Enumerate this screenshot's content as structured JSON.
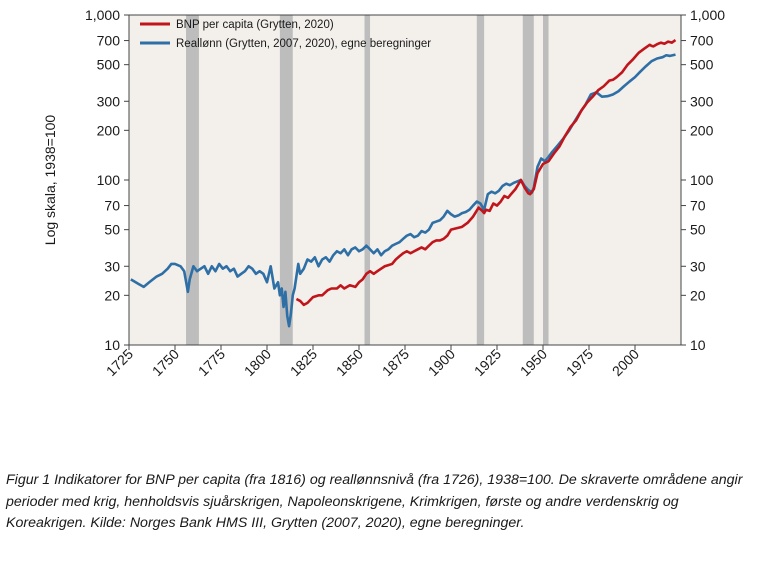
{
  "chart_data": {
    "type": "line",
    "yscale": "log",
    "ylabel": "Log skala, 1938=100",
    "ylim": [
      10,
      1000
    ],
    "xlim": [
      1725,
      2025
    ],
    "yticks": [
      {
        "value": 1000,
        "label": "1,000"
      },
      {
        "value": 700,
        "label": "700"
      },
      {
        "value": 500,
        "label": "500"
      },
      {
        "value": 300,
        "label": "300"
      },
      {
        "value": 200,
        "label": "200"
      },
      {
        "value": 100,
        "label": "100"
      },
      {
        "value": 70,
        "label": "70"
      },
      {
        "value": 50,
        "label": "50"
      },
      {
        "value": 30,
        "label": "30"
      },
      {
        "value": 20,
        "label": "20"
      },
      {
        "value": 10,
        "label": "10"
      }
    ],
    "xticks": [
      {
        "value": 1725,
        "label": "1725"
      },
      {
        "value": 1750,
        "label": "1750"
      },
      {
        "value": 1775,
        "label": "1775"
      },
      {
        "value": 1800,
        "label": "1800"
      },
      {
        "value": 1825,
        "label": "1825"
      },
      {
        "value": 1850,
        "label": "1850"
      },
      {
        "value": 1875,
        "label": "1875"
      },
      {
        "value": 1900,
        "label": "1900"
      },
      {
        "value": 1925,
        "label": "1925"
      },
      {
        "value": 1950,
        "label": "1950"
      },
      {
        "value": 1975,
        "label": "1975"
      },
      {
        "value": 2000,
        "label": "2000"
      }
    ],
    "shaded_periods": [
      {
        "name": "Sjuårskrigen",
        "start": 1756,
        "end": 1763
      },
      {
        "name": "Napoleonskrigene",
        "start": 1807,
        "end": 1814
      },
      {
        "name": "Krimkrigen",
        "start": 1853,
        "end": 1856
      },
      {
        "name": "Første verdenskrig",
        "start": 1914,
        "end": 1918
      },
      {
        "name": "Andre verdenskrig",
        "start": 1939,
        "end": 1945
      },
      {
        "name": "Koreakrigen",
        "start": 1950,
        "end": 1953
      }
    ],
    "series": [
      {
        "name": "BNP per capita (Grytten, 2020)",
        "color": "#c0151b",
        "points": [
          [
            1816,
            19
          ],
          [
            1818,
            18.5
          ],
          [
            1820,
            17.5
          ],
          [
            1822,
            18
          ],
          [
            1825,
            19.5
          ],
          [
            1828,
            20
          ],
          [
            1830,
            20
          ],
          [
            1833,
            21.5
          ],
          [
            1835,
            22
          ],
          [
            1838,
            22
          ],
          [
            1840,
            23
          ],
          [
            1842,
            22
          ],
          [
            1845,
            23
          ],
          [
            1848,
            22.5
          ],
          [
            1850,
            24
          ],
          [
            1852,
            25
          ],
          [
            1854,
            27
          ],
          [
            1856,
            28
          ],
          [
            1858,
            27
          ],
          [
            1860,
            28
          ],
          [
            1862,
            29
          ],
          [
            1864,
            30
          ],
          [
            1866,
            30.5
          ],
          [
            1868,
            31
          ],
          [
            1870,
            33
          ],
          [
            1872,
            34.5
          ],
          [
            1874,
            36
          ],
          [
            1876,
            37
          ],
          [
            1878,
            36
          ],
          [
            1880,
            37
          ],
          [
            1882,
            38
          ],
          [
            1884,
            39
          ],
          [
            1886,
            38
          ],
          [
            1888,
            40
          ],
          [
            1890,
            42
          ],
          [
            1892,
            43
          ],
          [
            1894,
            43
          ],
          [
            1896,
            44
          ],
          [
            1898,
            46
          ],
          [
            1900,
            50
          ],
          [
            1903,
            51
          ],
          [
            1906,
            52
          ],
          [
            1909,
            55
          ],
          [
            1912,
            60
          ],
          [
            1915,
            68
          ],
          [
            1917,
            65
          ],
          [
            1918,
            63
          ],
          [
            1919,
            66
          ],
          [
            1921,
            65
          ],
          [
            1923,
            72
          ],
          [
            1925,
            70
          ],
          [
            1927,
            74
          ],
          [
            1929,
            80
          ],
          [
            1931,
            78
          ],
          [
            1933,
            83
          ],
          [
            1935,
            88
          ],
          [
            1938,
            100
          ],
          [
            1940,
            90
          ],
          [
            1942,
            83
          ],
          [
            1943,
            82
          ],
          [
            1944,
            85
          ],
          [
            1945,
            88
          ],
          [
            1947,
            110
          ],
          [
            1950,
            125
          ],
          [
            1953,
            130
          ],
          [
            1956,
            145
          ],
          [
            1959,
            160
          ],
          [
            1962,
            185
          ],
          [
            1965,
            210
          ],
          [
            1968,
            230
          ],
          [
            1971,
            265
          ],
          [
            1974,
            295
          ],
          [
            1977,
            320
          ],
          [
            1980,
            350
          ],
          [
            1983,
            370
          ],
          [
            1986,
            400
          ],
          [
            1988,
            405
          ],
          [
            1990,
            420
          ],
          [
            1993,
            450
          ],
          [
            1996,
            500
          ],
          [
            1999,
            540
          ],
          [
            2002,
            590
          ],
          [
            2005,
            625
          ],
          [
            2008,
            660
          ],
          [
            2009,
            650
          ],
          [
            2010,
            645
          ],
          [
            2012,
            665
          ],
          [
            2014,
            680
          ],
          [
            2016,
            670
          ],
          [
            2018,
            690
          ],
          [
            2020,
            680
          ],
          [
            2022,
            705
          ]
        ]
      },
      {
        "name": "Reallønn (Grytten, 2007, 2020), egne beregninger",
        "color": "#2e6fa6",
        "points": [
          [
            1726,
            25
          ],
          [
            1730,
            23.5
          ],
          [
            1733,
            22.5
          ],
          [
            1736,
            24
          ],
          [
            1740,
            26
          ],
          [
            1743,
            27
          ],
          [
            1746,
            29
          ],
          [
            1748,
            31
          ],
          [
            1750,
            31
          ],
          [
            1753,
            30
          ],
          [
            1755,
            28
          ],
          [
            1757,
            21
          ],
          [
            1758,
            25
          ],
          [
            1760,
            30
          ],
          [
            1762,
            28
          ],
          [
            1764,
            29
          ],
          [
            1766,
            30
          ],
          [
            1768,
            27
          ],
          [
            1770,
            30
          ],
          [
            1772,
            28
          ],
          [
            1774,
            31
          ],
          [
            1776,
            29
          ],
          [
            1778,
            30
          ],
          [
            1780,
            28
          ],
          [
            1782,
            29
          ],
          [
            1784,
            26
          ],
          [
            1786,
            27
          ],
          [
            1788,
            28
          ],
          [
            1790,
            30
          ],
          [
            1792,
            29
          ],
          [
            1794,
            27
          ],
          [
            1796,
            28
          ],
          [
            1798,
            27
          ],
          [
            1800,
            24
          ],
          [
            1802,
            30
          ],
          [
            1804,
            22
          ],
          [
            1806,
            24
          ],
          [
            1807,
            20
          ],
          [
            1808,
            22
          ],
          [
            1809,
            17
          ],
          [
            1810,
            21
          ],
          [
            1811,
            15
          ],
          [
            1812,
            13
          ],
          [
            1813,
            15.5
          ],
          [
            1814,
            20
          ],
          [
            1815,
            22
          ],
          [
            1817,
            31
          ],
          [
            1818,
            27
          ],
          [
            1820,
            29
          ],
          [
            1822,
            33
          ],
          [
            1824,
            32
          ],
          [
            1826,
            34
          ],
          [
            1828,
            30
          ],
          [
            1830,
            33
          ],
          [
            1832,
            34
          ],
          [
            1834,
            32
          ],
          [
            1836,
            35
          ],
          [
            1838,
            37
          ],
          [
            1840,
            36
          ],
          [
            1842,
            38
          ],
          [
            1844,
            35
          ],
          [
            1846,
            38
          ],
          [
            1848,
            39
          ],
          [
            1850,
            37
          ],
          [
            1852,
            38
          ],
          [
            1854,
            40
          ],
          [
            1856,
            38
          ],
          [
            1858,
            36
          ],
          [
            1860,
            38
          ],
          [
            1862,
            35
          ],
          [
            1864,
            37
          ],
          [
            1866,
            38
          ],
          [
            1868,
            40
          ],
          [
            1870,
            41
          ],
          [
            1872,
            42
          ],
          [
            1874,
            44
          ],
          [
            1876,
            46
          ],
          [
            1878,
            47
          ],
          [
            1880,
            45
          ],
          [
            1882,
            46
          ],
          [
            1884,
            49
          ],
          [
            1886,
            48
          ],
          [
            1888,
            50
          ],
          [
            1890,
            55
          ],
          [
            1892,
            56
          ],
          [
            1894,
            57
          ],
          [
            1896,
            60
          ],
          [
            1898,
            65
          ],
          [
            1900,
            62
          ],
          [
            1902,
            60
          ],
          [
            1904,
            61
          ],
          [
            1906,
            63
          ],
          [
            1908,
            64
          ],
          [
            1910,
            66
          ],
          [
            1912,
            70
          ],
          [
            1914,
            74
          ],
          [
            1916,
            72
          ],
          [
            1918,
            66
          ],
          [
            1920,
            82
          ],
          [
            1922,
            85
          ],
          [
            1924,
            83
          ],
          [
            1926,
            86
          ],
          [
            1928,
            92
          ],
          [
            1930,
            95
          ],
          [
            1932,
            93
          ],
          [
            1934,
            96
          ],
          [
            1936,
            98
          ],
          [
            1938,
            100
          ],
          [
            1940,
            92
          ],
          [
            1942,
            87
          ],
          [
            1944,
            84
          ],
          [
            1945,
            90
          ],
          [
            1947,
            120
          ],
          [
            1949,
            135
          ],
          [
            1951,
            130
          ],
          [
            1953,
            138
          ],
          [
            1955,
            148
          ],
          [
            1958,
            162
          ],
          [
            1961,
            178
          ],
          [
            1964,
            198
          ],
          [
            1967,
            225
          ],
          [
            1970,
            255
          ],
          [
            1973,
            285
          ],
          [
            1976,
            330
          ],
          [
            1979,
            340
          ],
          [
            1982,
            320
          ],
          [
            1985,
            322
          ],
          [
            1988,
            330
          ],
          [
            1991,
            345
          ],
          [
            1994,
            370
          ],
          [
            1997,
            395
          ],
          [
            2000,
            420
          ],
          [
            2003,
            455
          ],
          [
            2006,
            490
          ],
          [
            2009,
            525
          ],
          [
            2012,
            545
          ],
          [
            2015,
            555
          ],
          [
            2017,
            570
          ],
          [
            2019,
            565
          ],
          [
            2022,
            575
          ]
        ]
      }
    ]
  },
  "caption": {
    "text": "Figur 1 Indikatorer for BNP per capita (fra 1816) og reallønnsnivå (fra 1726), 1938=100. De skraverte områdene angir perioder med krig, henholdsvis sjuårskrigen, Napoleonskrigene, Krimkrigen, første og andre verdenskrig og Koreakrigen. Kilde: Norges Bank HMS III, Grytten (2007, 2020), egne beregninger."
  },
  "colors": {
    "plot_background": "#f3efeb",
    "shading": "#bdbdbd",
    "axis": "#444444"
  }
}
